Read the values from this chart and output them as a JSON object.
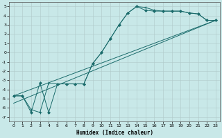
{
  "title": "",
  "xlabel": "Humidex (Indice chaleur)",
  "background_color": "#c8e8e8",
  "grid_color": "#b0c8c8",
  "line_color": "#1a6b6b",
  "xlim": [
    -0.5,
    23.5
  ],
  "ylim": [
    -7.5,
    5.5
  ],
  "xticks": [
    0,
    1,
    2,
    3,
    4,
    5,
    6,
    7,
    8,
    9,
    10,
    11,
    12,
    13,
    14,
    15,
    16,
    17,
    18,
    19,
    20,
    21,
    22,
    23
  ],
  "yticks": [
    -7,
    -6,
    -5,
    -4,
    -3,
    -2,
    -1,
    0,
    1,
    2,
    3,
    4,
    5
  ],
  "series1_x": [
    0,
    1,
    2,
    3,
    4,
    5,
    6,
    7,
    8,
    9,
    10,
    11,
    12,
    13,
    14,
    15,
    16,
    17,
    18,
    19,
    20,
    21,
    22,
    23
  ],
  "series1_y": [
    -4.7,
    -4.7,
    -6.2,
    -6.5,
    -3.3,
    -3.4,
    -3.4,
    -3.4,
    -3.4,
    -1.2,
    0.0,
    1.5,
    3.0,
    4.3,
    5.0,
    4.9,
    4.6,
    4.5,
    4.5,
    4.5,
    4.3,
    4.2,
    3.5,
    3.5
  ],
  "series2_x": [
    0,
    1,
    2,
    3,
    4,
    5,
    6,
    7,
    8,
    9,
    10,
    11,
    12,
    13,
    14,
    15,
    16,
    17,
    18,
    19,
    20,
    21,
    22,
    23
  ],
  "series2_y": [
    -4.7,
    -4.7,
    -6.5,
    -3.3,
    -6.5,
    -3.4,
    -3.4,
    -3.4,
    -3.4,
    -1.2,
    0.0,
    1.5,
    3.0,
    4.3,
    5.0,
    4.6,
    4.5,
    4.5,
    4.5,
    4.5,
    4.3,
    4.2,
    3.5,
    3.5
  ],
  "line1_x": [
    0,
    23
  ],
  "line1_y": [
    -4.7,
    3.5
  ],
  "line2_x": [
    0,
    23
  ],
  "line2_y": [
    -5.5,
    3.5
  ]
}
